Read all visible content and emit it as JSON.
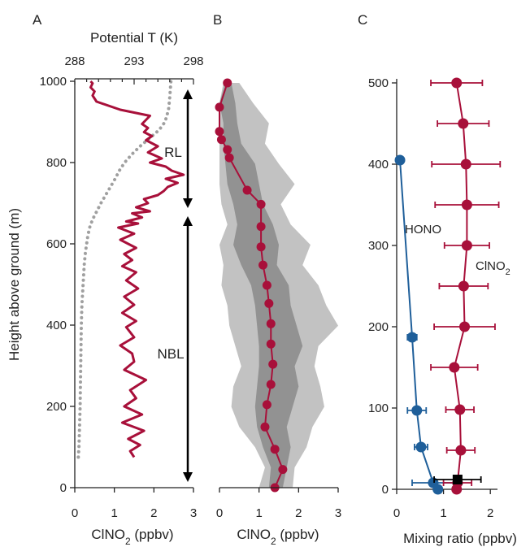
{
  "colors": {
    "crimson": "#a8103a",
    "blue": "#1f5f9a",
    "gray_line": "#a0a0a0",
    "band_outer": "#c2c2c2",
    "band_inner": "#929292",
    "axis": "#222222"
  },
  "shared": {
    "ylabel": "Height above ground (m)"
  },
  "chart_data": [
    {
      "panel": "A",
      "type": "line",
      "xlabel": "ClNO2 (ppbv)",
      "xlim": [
        0,
        3
      ],
      "ylim": [
        0,
        1000
      ],
      "xticks": [
        "0",
        "1",
        "2",
        "3"
      ],
      "yticks": [
        "0",
        "200",
        "400",
        "600",
        "800",
        "1000"
      ],
      "top_axis": {
        "label": "Potential T (K)",
        "xlim": [
          288,
          298
        ],
        "ticks": [
          "288",
          "293",
          "298"
        ]
      },
      "series": [
        {
          "name": "",
          "axis": "bottom",
          "x": [
            1.5,
            1.4,
            1.65,
            1.35,
            1.75,
            1.2,
            1.7,
            1.25,
            1.55,
            1.4,
            1.8,
            1.25,
            1.5,
            1.45,
            1.15,
            1.5,
            1.3,
            1.55,
            1.2,
            1.5,
            1.25,
            1.6,
            1.3,
            1.55,
            1.2,
            1.45,
            1.25,
            1.55,
            1.15,
            1.5,
            1.1,
            1.6,
            1.3,
            1.7,
            1.45,
            1.9,
            1.55,
            1.85,
            1.75,
            2.1,
            2.25,
            2.35,
            2.6,
            2.3,
            2.75,
            2.45,
            2.3,
            1.9,
            2.2,
            1.85,
            2.1,
            1.8,
            1.95,
            1.75,
            1.85,
            1.7,
            1.8,
            1.9,
            1.15,
            0.55,
            0.45,
            0.5,
            0.4,
            0.45,
            0.4
          ],
          "y": [
            75,
            90,
            105,
            120,
            140,
            160,
            180,
            200,
            220,
            240,
            265,
            290,
            310,
            330,
            350,
            370,
            395,
            410,
            430,
            450,
            470,
            490,
            510,
            530,
            545,
            560,
            575,
            590,
            610,
            625,
            640,
            650,
            655,
            665,
            675,
            680,
            690,
            700,
            710,
            720,
            730,
            740,
            750,
            760,
            770,
            780,
            790,
            800,
            810,
            825,
            840,
            855,
            865,
            875,
            885,
            895,
            905,
            915,
            930,
            950,
            965,
            975,
            985,
            995,
            1000
          ]
        },
        {
          "name": "",
          "axis": "top",
          "style": "dotted",
          "x": [
            288.3,
            288.35,
            288.45,
            288.5,
            288.55,
            288.6,
            288.7,
            288.8,
            288.9,
            289.0,
            289.1,
            289.25,
            289.5,
            289.85,
            290.2,
            290.6,
            291.0,
            291.4,
            291.75,
            292.2,
            292.8,
            293.5,
            294.3,
            295.1,
            295.6,
            295.9,
            296.0,
            296.1
          ],
          "y": [
            75,
            100,
            200,
            300,
            400,
            450,
            500,
            550,
            580,
            600,
            620,
            640,
            660,
            680,
            700,
            720,
            740,
            760,
            780,
            800,
            820,
            840,
            860,
            880,
            900,
            930,
            960,
            1000
          ]
        }
      ],
      "annotations": [
        {
          "text": "RL",
          "span": [
            690,
            975
          ]
        },
        {
          "text": "NBL",
          "span": [
            15,
            665
          ]
        }
      ]
    },
    {
      "panel": "B",
      "type": "line",
      "xlabel": "ClNO2 (ppbv)",
      "xlim": [
        0,
        3
      ],
      "ylim": [
        0,
        1000
      ],
      "xticks": [
        "0",
        "1",
        "2",
        "3"
      ],
      "series": [
        {
          "name": "",
          "x": [
            1.4,
            1.6,
            1.4,
            1.15,
            1.2,
            1.3,
            1.35,
            1.3,
            1.3,
            1.25,
            1.2,
            1.1,
            1.05,
            1.05,
            1.05,
            0.7,
            0.25,
            0.2,
            0.05,
            0.0,
            0.0,
            0.2
          ],
          "y": [
            0,
            45,
            95,
            150,
            205,
            255,
            305,
            355,
            405,
            455,
            500,
            550,
            595,
            645,
            700,
            735,
            815,
            835,
            860,
            880,
            940,
            1000
          ]
        }
      ],
      "bands": {
        "height": [
          0,
          50,
          100,
          150,
          200,
          250,
          300,
          350,
          400,
          450,
          500,
          550,
          600,
          650,
          700,
          750,
          800,
          850,
          900,
          950,
          1000
        ],
        "outer_lo": [
          1.0,
          1.15,
          0.9,
          0.5,
          0.3,
          0.35,
          0.55,
          0.4,
          0.25,
          0.2,
          0.05,
          0.1,
          0.0,
          0.2,
          0.05,
          0.0,
          0.0,
          0.0,
          0.0,
          0.0,
          0.1
        ],
        "outer_hi": [
          1.85,
          1.9,
          2.2,
          2.35,
          2.65,
          2.55,
          2.4,
          2.5,
          3.0,
          2.7,
          2.5,
          2.1,
          2.3,
          1.8,
          1.55,
          1.9,
          1.5,
          1.15,
          1.25,
          0.85,
          0.5
        ],
        "inner_lo": [
          1.25,
          1.3,
          1.1,
          0.95,
          0.9,
          0.95,
          1.0,
          1.0,
          0.95,
          0.9,
          0.8,
          0.55,
          0.35,
          0.45,
          0.35,
          0.2,
          0.15,
          0.1,
          0.1,
          0.0,
          0.15
        ],
        "inner_hi": [
          1.6,
          1.7,
          1.8,
          1.7,
          1.85,
          2.0,
          1.9,
          2.1,
          1.95,
          1.8,
          1.75,
          1.45,
          1.5,
          1.35,
          1.1,
          1.0,
          0.9,
          0.55,
          0.45,
          0.4,
          0.3
        ]
      }
    },
    {
      "panel": "C",
      "type": "scatter",
      "xlabel": "Mixing ratio (ppbv)",
      "xlim": [
        0,
        2.5
      ],
      "ylim": [
        0,
        510
      ],
      "xticks": [
        "0",
        "1",
        "2"
      ],
      "yticks": [
        "0",
        "100",
        "200",
        "300",
        "400",
        "500"
      ],
      "series": [
        {
          "name": "HONO",
          "color_key": "blue",
          "x": [
            0.88,
            0.78,
            0.52,
            0.43,
            0.33,
            0.07
          ],
          "y": [
            0,
            8,
            52,
            97,
            187,
            405
          ],
          "xerr": [
            0,
            0.45,
            0.14,
            0.2,
            0.1,
            0
          ]
        },
        {
          "name": "ClNO2",
          "color_key": "crimson",
          "x": [
            1.28,
            1.3,
            1.37,
            1.35,
            1.23,
            1.45,
            1.43,
            1.5,
            1.5,
            1.48,
            1.42,
            1.28
          ],
          "y": [
            0,
            8,
            48,
            98,
            150,
            200,
            250,
            300,
            350,
            400,
            450,
            500
          ],
          "xerr": [
            0,
            0.3,
            0.3,
            0.3,
            0.5,
            0.65,
            0.52,
            0.48,
            0.68,
            0.73,
            0.55,
            0.55
          ]
        },
        {
          "name": "",
          "marker": "square",
          "x": [
            1.3
          ],
          "y": [
            12
          ],
          "xerr": [
            0.5
          ]
        }
      ]
    }
  ]
}
